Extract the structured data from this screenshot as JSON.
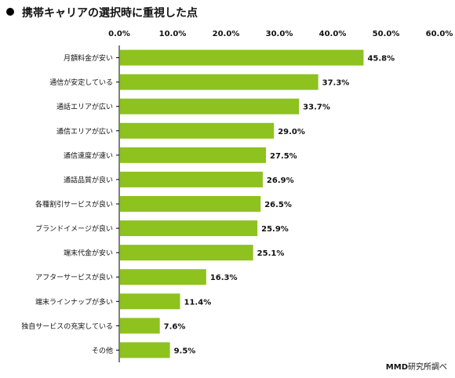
{
  "title": "携帯キャリアの選択時に重視した点",
  "source": {
    "brand": "MMD",
    "suffix": "研究所調べ"
  },
  "colors": {
    "bar": "#8dc21f",
    "axis": "#000000"
  },
  "chart_data": {
    "type": "bar",
    "orientation": "horizontal",
    "title": "携帯キャリアの選択時に重視した点",
    "xlim": [
      0,
      60
    ],
    "tick_values": [
      0,
      10,
      20,
      30,
      40,
      50,
      60
    ],
    "tick_labels": [
      "0.0%",
      "10.0%",
      "20.0%",
      "30.0%",
      "40.0%",
      "50.0%",
      "60.0%"
    ],
    "axis_position": "top",
    "grid": false,
    "categories": [
      "月額料金が安い",
      "通信が安定している",
      "通話エリアが広い",
      "通信エリアが広い",
      "通信速度が速い",
      "通話品質が良い",
      "各種割引サービスが良い",
      "ブランドイメージが良い",
      "端末代金が安い",
      "アフターサービスが良い",
      "端末ラインナップが多い",
      "独自サービスの充実している",
      "その他"
    ],
    "values": [
      45.8,
      37.3,
      33.7,
      29.0,
      27.5,
      26.9,
      26.5,
      25.9,
      25.1,
      16.3,
      11.4,
      7.6,
      9.5
    ],
    "value_labels": [
      "45.8%",
      "37.3%",
      "33.7%",
      "29.0%",
      "27.5%",
      "26.9%",
      "26.5%",
      "25.9%",
      "25.1%",
      "16.3%",
      "11.4%",
      "7.6%",
      "9.5%"
    ]
  }
}
